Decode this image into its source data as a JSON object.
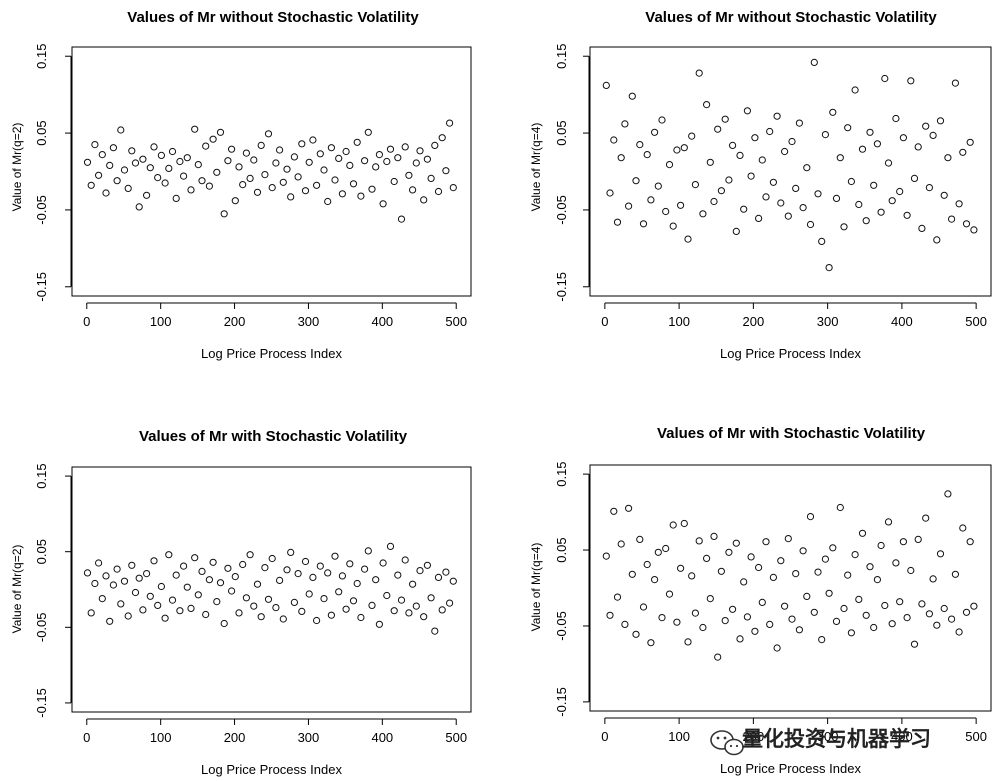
{
  "chart_data": [
    {
      "type": "scatter",
      "title": "Values of Mr without Stochastic Volatility",
      "xlabel": "Log Price Process Index",
      "ylabel": "Value of Mr(q=2)",
      "xlim": [
        0,
        500
      ],
      "ylim": [
        -0.15,
        0.15
      ],
      "xticks": [
        "0",
        "100",
        "200",
        "300",
        "400",
        "500"
      ],
      "yticks": [
        "-0.15",
        "-0.05",
        "0.05",
        "0.15"
      ],
      "x": [
        1,
        6,
        11,
        16,
        21,
        26,
        31,
        36,
        41,
        46,
        51,
        56,
        61,
        66,
        71,
        76,
        81,
        86,
        91,
        96,
        101,
        106,
        111,
        116,
        121,
        126,
        131,
        136,
        141,
        146,
        151,
        156,
        161,
        166,
        171,
        176,
        181,
        186,
        191,
        196,
        201,
        206,
        211,
        216,
        221,
        226,
        231,
        236,
        241,
        246,
        251,
        256,
        261,
        266,
        271,
        276,
        281,
        286,
        291,
        296,
        301,
        306,
        311,
        316,
        321,
        326,
        331,
        336,
        341,
        346,
        351,
        356,
        361,
        366,
        371,
        376,
        381,
        386,
        391,
        396,
        401,
        406,
        411,
        416,
        421,
        426,
        431,
        436,
        441,
        446,
        451,
        456,
        461,
        466,
        471,
        476,
        481,
        486,
        491,
        496
      ],
      "y": [
        0.012,
        -0.018,
        0.035,
        -0.005,
        0.022,
        -0.028,
        0.008,
        0.031,
        -0.012,
        0.054,
        0.002,
        -0.022,
        0.027,
        0.011,
        -0.046,
        0.016,
        -0.031,
        0.005,
        0.032,
        -0.008,
        0.021,
        -0.015,
        0.004,
        0.026,
        -0.035,
        0.013,
        -0.006,
        0.018,
        -0.024,
        0.055,
        0.009,
        -0.012,
        0.033,
        -0.019,
        0.042,
        -0.001,
        0.051,
        -0.055,
        0.014,
        0.029,
        -0.038,
        0.006,
        -0.017,
        0.024,
        -0.009,
        0.015,
        -0.027,
        0.034,
        -0.004,
        0.049,
        -0.021,
        0.011,
        0.028,
        -0.014,
        0.003,
        -0.033,
        0.019,
        -0.007,
        0.036,
        -0.025,
        0.012,
        0.041,
        -0.018,
        0.023,
        0.002,
        -0.039,
        0.031,
        -0.011,
        0.017,
        -0.029,
        0.026,
        0.008,
        -0.016,
        0.038,
        -0.032,
        0.014,
        0.051,
        -0.023,
        0.006,
        0.022,
        -0.042,
        0.013,
        0.029,
        -0.013,
        0.018,
        -0.062,
        0.032,
        -0.005,
        -0.024,
        0.011,
        0.027,
        -0.037,
        0.016,
        -0.009,
        0.034,
        -0.026,
        0.044,
        0.001,
        0.063,
        -0.021
      ]
    },
    {
      "type": "scatter",
      "title": "Values of Mr without Stochastic Volatility",
      "xlabel": "Log Price Process Index",
      "ylabel": "Value of Mr(q=4)",
      "xlim": [
        0,
        500
      ],
      "ylim": [
        -0.15,
        0.15
      ],
      "xticks": [
        "0",
        "100",
        "200",
        "300",
        "400",
        "500"
      ],
      "yticks": [
        "-0.15",
        "-0.05",
        "0.05",
        "0.15"
      ],
      "x": [
        2,
        7,
        12,
        17,
        22,
        27,
        32,
        37,
        42,
        47,
        52,
        57,
        62,
        67,
        72,
        77,
        82,
        87,
        92,
        97,
        102,
        107,
        112,
        117,
        122,
        127,
        132,
        137,
        142,
        147,
        152,
        157,
        162,
        167,
        172,
        177,
        182,
        187,
        192,
        197,
        202,
        207,
        212,
        217,
        222,
        227,
        232,
        237,
        242,
        247,
        252,
        257,
        262,
        267,
        272,
        277,
        282,
        287,
        292,
        297,
        302,
        307,
        312,
        317,
        322,
        327,
        332,
        337,
        342,
        347,
        352,
        357,
        362,
        367,
        372,
        377,
        382,
        387,
        392,
        397,
        402,
        407,
        412,
        417,
        422,
        427,
        432,
        437,
        442,
        447,
        452,
        457,
        462,
        467,
        472,
        477,
        482,
        487,
        492,
        497
      ],
      "y": [
        0.112,
        -0.028,
        0.041,
        -0.066,
        0.018,
        0.062,
        -0.045,
        0.098,
        -0.012,
        0.035,
        -0.068,
        0.022,
        -0.037,
        0.051,
        -0.019,
        0.067,
        -0.052,
        0.009,
        -0.071,
        0.028,
        -0.044,
        0.031,
        -0.088,
        0.046,
        -0.017,
        0.128,
        -0.055,
        0.087,
        0.012,
        -0.039,
        0.055,
        -0.025,
        0.068,
        -0.011,
        0.034,
        -0.078,
        0.021,
        -0.049,
        0.079,
        -0.006,
        0.044,
        -0.061,
        0.015,
        -0.033,
        0.052,
        -0.014,
        0.072,
        -0.041,
        0.026,
        -0.058,
        0.039,
        -0.022,
        0.063,
        -0.047,
        0.005,
        -0.069,
        0.142,
        -0.029,
        -0.091,
        0.048,
        -0.125,
        0.077,
        -0.035,
        0.018,
        -0.072,
        0.057,
        -0.013,
        0.106,
        -0.043,
        0.029,
        -0.064,
        0.051,
        -0.018,
        0.036,
        -0.053,
        0.121,
        0.011,
        -0.038,
        0.069,
        -0.026,
        0.044,
        -0.057,
        0.118,
        -0.009,
        0.032,
        -0.074,
        0.059,
        -0.021,
        0.047,
        -0.089,
        0.066,
        -0.031,
        0.018,
        -0.062,
        0.115,
        -0.042,
        0.025,
        -0.068,
        0.038,
        -0.076
      ]
    },
    {
      "type": "scatter",
      "title": "Values of Mr with Stochastic Volatility",
      "xlabel": "Log Price Process Index",
      "ylabel": "Value of Mr(q=2)",
      "xlim": [
        0,
        500
      ],
      "ylim": [
        -0.15,
        0.15
      ],
      "xticks": [
        "0",
        "100",
        "200",
        "300",
        "400",
        "500"
      ],
      "yticks": [
        "-0.15",
        "-0.05",
        "0.05",
        "0.15"
      ],
      "x": [
        1,
        6,
        11,
        16,
        21,
        26,
        31,
        36,
        41,
        46,
        51,
        56,
        61,
        66,
        71,
        76,
        81,
        86,
        91,
        96,
        101,
        106,
        111,
        116,
        121,
        126,
        131,
        136,
        141,
        146,
        151,
        156,
        161,
        166,
        171,
        176,
        181,
        186,
        191,
        196,
        201,
        206,
        211,
        216,
        221,
        226,
        231,
        236,
        241,
        246,
        251,
        256,
        261,
        266,
        271,
        276,
        281,
        286,
        291,
        296,
        301,
        306,
        311,
        316,
        321,
        326,
        331,
        336,
        341,
        346,
        351,
        356,
        361,
        366,
        371,
        376,
        381,
        386,
        391,
        396,
        401,
        406,
        411,
        416,
        421,
        426,
        431,
        436,
        441,
        446,
        451,
        456,
        461,
        466,
        471,
        476,
        481,
        486,
        491,
        496
      ],
      "y": [
        0.022,
        -0.031,
        0.008,
        0.035,
        -0.012,
        0.018,
        -0.042,
        0.006,
        0.027,
        -0.019,
        0.011,
        -0.035,
        0.032,
        -0.004,
        0.015,
        -0.027,
        0.021,
        -0.009,
        0.038,
        -0.021,
        0.004,
        -0.038,
        0.046,
        -0.014,
        0.019,
        -0.028,
        0.031,
        0.003,
        -0.025,
        0.042,
        -0.007,
        0.024,
        -0.033,
        0.013,
        0.036,
        -0.016,
        0.009,
        -0.045,
        0.028,
        -0.002,
        0.017,
        -0.031,
        0.033,
        -0.011,
        0.046,
        -0.022,
        0.007,
        -0.036,
        0.029,
        -0.013,
        0.041,
        -0.024,
        0.012,
        -0.039,
        0.026,
        0.049,
        -0.017,
        0.021,
        -0.029,
        0.037,
        -0.006,
        0.016,
        -0.041,
        0.031,
        -0.012,
        0.022,
        -0.034,
        0.044,
        -0.003,
        0.018,
        -0.026,
        0.034,
        -0.015,
        0.008,
        -0.037,
        0.027,
        0.051,
        -0.021,
        0.013,
        -0.046,
        0.035,
        -0.008,
        0.057,
        -0.028,
        0.019,
        -0.014,
        0.039,
        -0.031,
        0.007,
        -0.022,
        0.025,
        -0.036,
        0.032,
        -0.011,
        -0.055,
        0.016,
        -0.027,
        0.023,
        -0.018,
        0.011
      ]
    },
    {
      "type": "scatter",
      "title": "Values of Mr with Stochastic Volatility",
      "xlabel": "Log Price Process Index",
      "ylabel": "Value of Mr(q=4)",
      "xlim": [
        0,
        500
      ],
      "ylim": [
        -0.15,
        0.15
      ],
      "xticks": [
        "0",
        "100",
        "200",
        "300",
        "400",
        "500"
      ],
      "yticks": [
        "-0.15",
        "-0.05",
        "0.05",
        "0.15"
      ],
      "x": [
        2,
        7,
        12,
        17,
        22,
        27,
        32,
        37,
        42,
        47,
        52,
        57,
        62,
        67,
        72,
        77,
        82,
        87,
        92,
        97,
        102,
        107,
        112,
        117,
        122,
        127,
        132,
        137,
        142,
        147,
        152,
        157,
        162,
        167,
        172,
        177,
        182,
        187,
        192,
        197,
        202,
        207,
        212,
        217,
        222,
        227,
        232,
        237,
        242,
        247,
        252,
        257,
        262,
        267,
        272,
        277,
        282,
        287,
        292,
        297,
        302,
        307,
        312,
        317,
        322,
        327,
        332,
        337,
        342,
        347,
        352,
        357,
        362,
        367,
        372,
        377,
        382,
        387,
        392,
        397,
        402,
        407,
        412,
        417,
        422,
        427,
        432,
        437,
        442,
        447,
        452,
        457,
        462,
        467,
        472,
        477,
        482,
        487,
        492,
        497
      ],
      "y": [
        0.042,
        -0.036,
        0.101,
        -0.012,
        0.058,
        -0.048,
        0.105,
        0.018,
        -0.061,
        0.064,
        -0.025,
        0.031,
        -0.072,
        0.011,
        0.047,
        -0.039,
        0.052,
        -0.008,
        0.083,
        -0.045,
        0.026,
        0.085,
        -0.071,
        0.016,
        -0.033,
        0.062,
        -0.052,
        0.039,
        -0.014,
        0.068,
        -0.091,
        0.022,
        -0.043,
        0.047,
        -0.028,
        0.059,
        -0.067,
        0.008,
        -0.038,
        0.041,
        -0.057,
        0.027,
        -0.019,
        0.061,
        -0.048,
        0.014,
        -0.079,
        0.036,
        -0.024,
        0.065,
        -0.041,
        0.019,
        -0.055,
        0.049,
        -0.011,
        0.094,
        -0.032,
        0.021,
        -0.068,
        0.038,
        -0.007,
        0.053,
        -0.044,
        0.106,
        -0.027,
        0.017,
        -0.059,
        0.044,
        -0.015,
        0.072,
        -0.036,
        0.028,
        -0.052,
        0.011,
        0.056,
        -0.023,
        0.087,
        -0.047,
        0.033,
        -0.018,
        0.061,
        -0.039,
        0.023,
        -0.074,
        0.064,
        -0.021,
        0.092,
        -0.034,
        0.012,
        -0.049,
        0.045,
        -0.027,
        0.124,
        -0.041,
        0.018,
        -0.058,
        0.079,
        -0.032,
        0.061,
        -0.024
      ]
    }
  ],
  "watermark": {
    "text": "量化投资与机器学习",
    "icon": "wechat-icon"
  },
  "colors": {
    "background": "#ffffff",
    "axis": "#000000",
    "marker_stroke": "#111111"
  }
}
